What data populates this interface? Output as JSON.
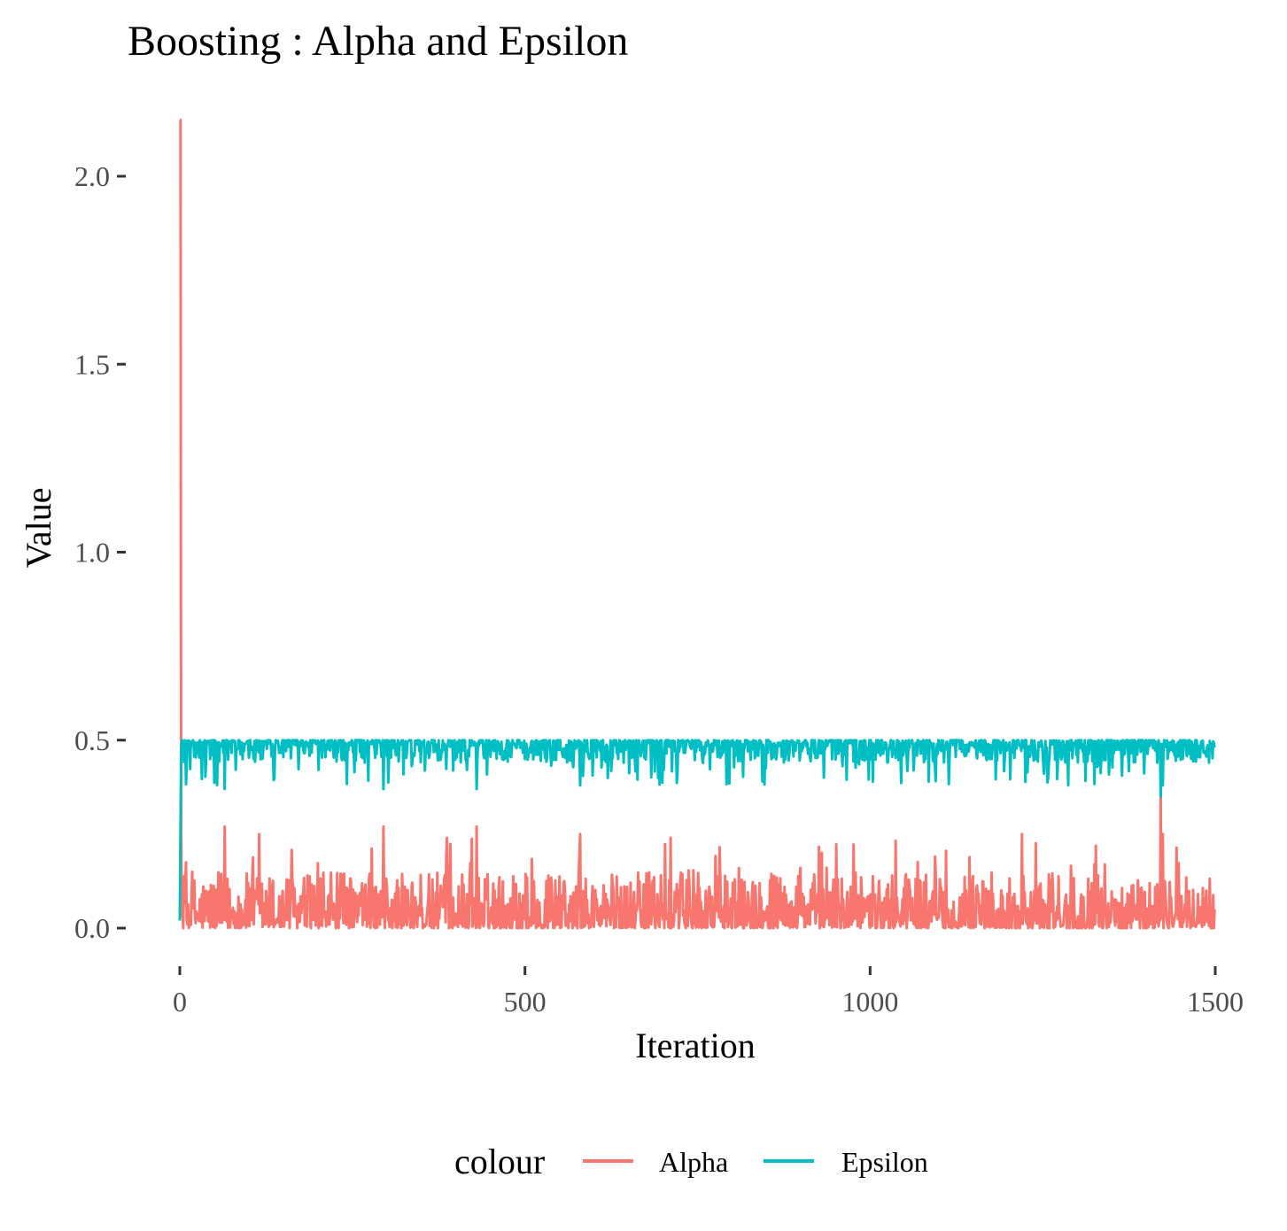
{
  "chart_data": {
    "type": "line",
    "title": "Boosting : Alpha and Epsilon",
    "xlabel": "Iteration",
    "ylabel": "Value",
    "xlim": [
      0,
      1500
    ],
    "ylim": [
      -0.1,
      2.15
    ],
    "x_ticks": [
      "0",
      "500",
      "1000",
      "1500"
    ],
    "x_tick_values": [
      0,
      500,
      1000,
      1500
    ],
    "y_ticks": [
      "0.0",
      "0.5",
      "1.0",
      "1.5",
      "2.0"
    ],
    "y_tick_values": [
      0,
      0.5,
      1.0,
      1.5,
      2.0
    ],
    "grid": false,
    "legend_position": "bottom",
    "legend_title": "colour",
    "n_points": 1500,
    "series": [
      {
        "name": "Alpha",
        "color": "#F8766D",
        "start_value": 2.15,
        "baseline_range": [
          0.0,
          0.27
        ],
        "typical_mean": 0.05,
        "spikes": [
          [
            1,
            2.15
          ],
          [
            2,
            0.25
          ],
          [
            65,
            0.27
          ],
          [
            115,
            0.25
          ],
          [
            295,
            0.27
          ],
          [
            430,
            0.27
          ],
          [
            580,
            0.25
          ],
          [
            1220,
            0.25
          ],
          [
            1421,
            0.35
          ],
          [
            1424,
            0.25
          ]
        ],
        "dips": [
          [
            1260,
            0.0
          ],
          [
            1300,
            0.0
          ],
          [
            1400,
            0.0
          ]
        ],
        "end_value": 0.05
      },
      {
        "name": "Epsilon",
        "color": "#00BFC4",
        "start_value": 0.02,
        "baseline_range": [
          0.35,
          0.5
        ],
        "typical_mean": 0.475,
        "spikes": [
          [
            1,
            0.27
          ],
          [
            3,
            0.5
          ]
        ],
        "dips": [
          [
            65,
            0.37
          ],
          [
            295,
            0.37
          ],
          [
            430,
            0.37
          ],
          [
            580,
            0.38
          ],
          [
            1085,
            0.39
          ],
          [
            1421,
            0.35
          ],
          [
            1424,
            0.38
          ]
        ],
        "end_value": 0.48
      }
    ]
  }
}
